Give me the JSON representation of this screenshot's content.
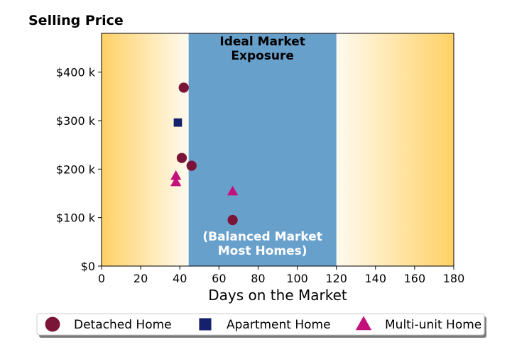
{
  "chart_data": {
    "type": "scatter",
    "title": "Selling Price",
    "xlabel": "Days on the Market",
    "ylabel": "",
    "xlim": [
      0,
      180
    ],
    "ylim": [
      0,
      480000
    ],
    "x_ticks": [
      0,
      20,
      40,
      60,
      80,
      100,
      120,
      140,
      160,
      180
    ],
    "y_ticks": [
      {
        "value": 0,
        "label": "$0"
      },
      {
        "value": 100000,
        "label": "$100 k"
      },
      {
        "value": 200000,
        "label": "$200 k"
      },
      {
        "value": 300000,
        "label": "$300 k"
      },
      {
        "value": 400000,
        "label": "$400 k"
      }
    ],
    "band": {
      "x_range": [
        44.5,
        120
      ],
      "title_lines": [
        "Ideal Market",
        "Exposure"
      ],
      "note_lines": [
        "(Balanced Market",
        "Most Homes)"
      ],
      "color": "#68a0cc"
    },
    "background_gradient": {
      "edge_color": "#ffd166",
      "center_color": "#fffaf0"
    },
    "grid": false,
    "legend_position": "bottom",
    "series": [
      {
        "name": "Detached Home",
        "marker": "circle",
        "color": "#7b1538",
        "points": [
          {
            "x": 42,
            "y": 368000
          },
          {
            "x": 41,
            "y": 223000
          },
          {
            "x": 46,
            "y": 207000
          },
          {
            "x": 67,
            "y": 95000
          }
        ]
      },
      {
        "name": "Apartment Home",
        "marker": "square",
        "color": "#16206b",
        "points": [
          {
            "x": 39,
            "y": 296000
          }
        ]
      },
      {
        "name": "Multi-unit Home",
        "marker": "triangle",
        "color": "#c4107a",
        "points": [
          {
            "x": 38,
            "y": 186000
          },
          {
            "x": 38,
            "y": 173000
          },
          {
            "x": 67,
            "y": 154000
          }
        ]
      }
    ]
  }
}
